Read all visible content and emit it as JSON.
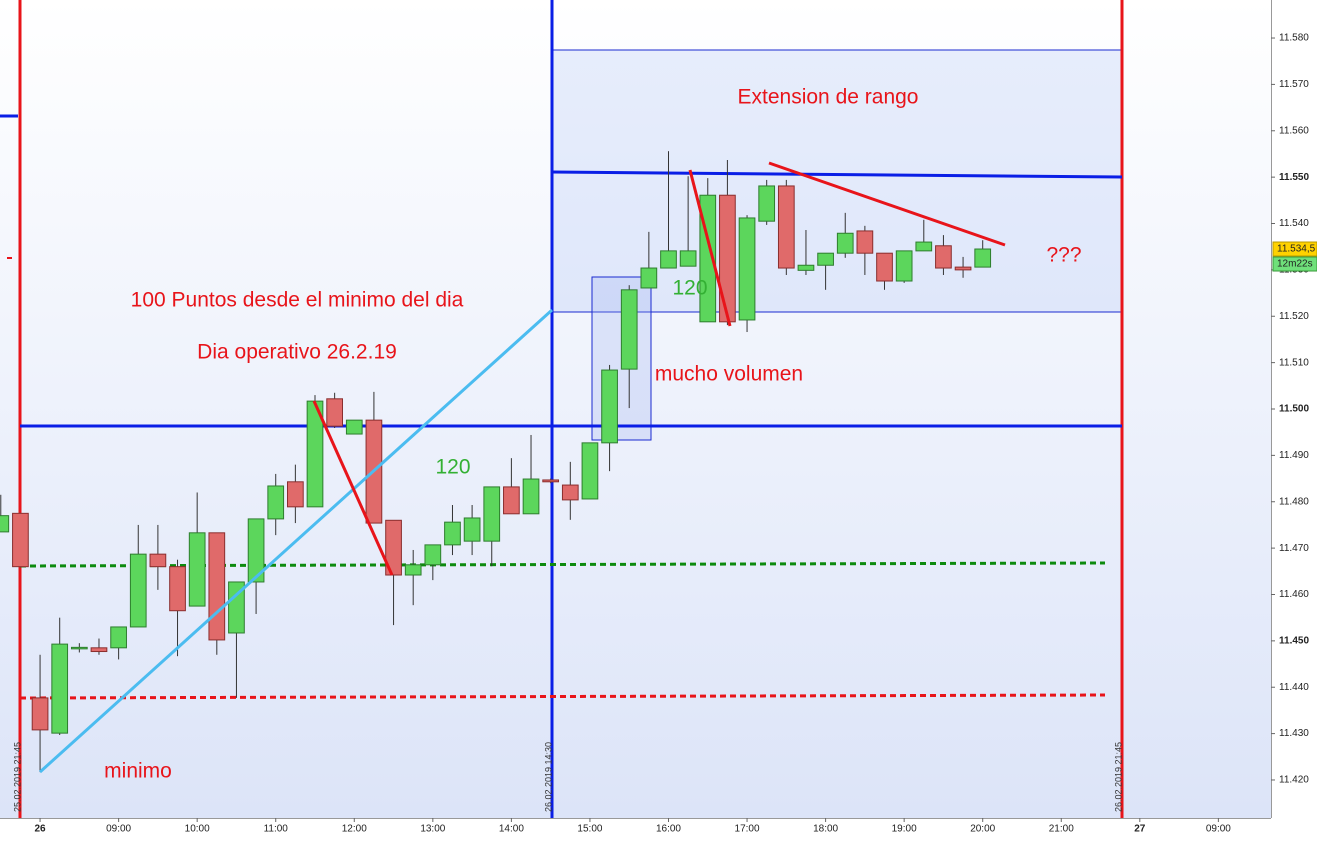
{
  "chart_data": {
    "type": "candlestick",
    "up_color": "#5cd65c",
    "down_color": "#e06a6a",
    "x": [
      7.5,
      7.75,
      8,
      8.25,
      8.5,
      8.75,
      9,
      9.25,
      9.5,
      9.75,
      10,
      10.25,
      10.5,
      10.75,
      11,
      11.25,
      11.5,
      11.75,
      12,
      12.25,
      12.5,
      12.75,
      13,
      13.25,
      13.5,
      13.75,
      14,
      14.25,
      14.5,
      14.75,
      15,
      15.25,
      15.5,
      15.75,
      16,
      16.25,
      16.5,
      16.75,
      17,
      17.25,
      17.5,
      17.75,
      18,
      18.25,
      18.5,
      18.75,
      19,
      19.25,
      19.5,
      19.75,
      20
    ],
    "open": [
      11.4735,
      11.4775,
      11.4377,
      11.4301,
      11.4483,
      11.4485,
      11.4485,
      11.453,
      11.4687,
      11.466,
      11.4575,
      11.4733,
      11.4517,
      11.4627,
      11.4763,
      11.4843,
      11.4789,
      11.5022,
      11.4946,
      11.4976,
      11.476,
      11.4642,
      11.4664,
      11.4707,
      11.4715,
      11.4715,
      11.4832,
      11.4774,
      11.4847,
      11.4836,
      11.4806,
      11.4927,
      11.5086,
      11.5261,
      11.5304,
      11.5308,
      11.5188,
      11.5461,
      11.5192,
      11.5405,
      11.5481,
      11.5299,
      11.531,
      11.5336,
      11.5384,
      11.5336,
      11.5276,
      11.5341,
      11.5352,
      11.5306,
      11.5306
    ],
    "high": [
      11.4815,
      11.4775,
      11.447,
      11.455,
      11.4495,
      11.4505,
      11.453,
      11.475,
      11.475,
      11.4675,
      11.482,
      11.4733,
      11.4627,
      11.4763,
      11.486,
      11.488,
      11.503,
      11.5035,
      11.4976,
      11.5037,
      11.476,
      11.4696,
      11.4707,
      11.4793,
      11.4793,
      11.4832,
      11.4894,
      11.4944,
      11.485,
      11.4886,
      11.4927,
      11.5095,
      11.5267,
      11.5382,
      11.5556,
      11.5502,
      11.5498,
      11.5537,
      11.5418,
      11.5494,
      11.5494,
      11.5386,
      11.5336,
      11.5423,
      11.5395,
      11.5336,
      11.5341,
      11.5408,
      11.5375,
      11.5328,
      11.5364
    ],
    "low": [
      11.4735,
      11.466,
      11.4217,
      11.4297,
      11.4475,
      11.447,
      11.446,
      11.453,
      11.461,
      11.4467,
      11.4575,
      11.447,
      11.4377,
      11.4558,
      11.4728,
      11.4754,
      11.4789,
      11.4959,
      11.4946,
      11.4754,
      11.4534,
      11.4577,
      11.4631,
      11.4685,
      11.4685,
      11.4661,
      11.4774,
      11.4774,
      11.484,
      11.4761,
      11.4806,
      11.4866,
      11.5002,
      11.5261,
      11.5304,
      11.5308,
      11.5188,
      11.5181,
      11.5166,
      11.5397,
      11.5289,
      11.5289,
      11.5257,
      11.5326,
      11.5289,
      11.5257,
      11.5272,
      11.5341,
      11.5289,
      11.5283,
      11.5306
    ],
    "close": [
      11.477,
      11.466,
      11.4308,
      11.4493,
      11.4486,
      11.4477,
      11.453,
      11.4687,
      11.466,
      11.4565,
      11.4733,
      11.4502,
      11.4627,
      11.4763,
      11.4834,
      11.4789,
      11.5017,
      11.4963,
      11.4976,
      11.4754,
      11.4642,
      11.4664,
      11.4707,
      11.4756,
      11.4765,
      11.4832,
      11.4774,
      11.4849,
      11.4843,
      11.4804,
      11.4927,
      11.5084,
      11.5257,
      11.5304,
      11.5341,
      11.5341,
      11.5461,
      11.5188,
      11.5412,
      11.5481,
      11.5304,
      11.531,
      11.5336,
      11.5379,
      11.5336,
      11.5276,
      11.5341,
      11.536,
      11.5304,
      11.53,
      11.5345
    ],
    "xlim": [
      7.49,
      23.67
    ],
    "ylim": [
      11.4118,
      11.5882
    ],
    "xticks": [
      {
        "value": 8,
        "label": "26",
        "bold": true
      },
      {
        "value": 9,
        "label": "09:00"
      },
      {
        "value": 10,
        "label": "10:00"
      },
      {
        "value": 11,
        "label": "11:00"
      },
      {
        "value": 12,
        "label": "12:00"
      },
      {
        "value": 13,
        "label": "13:00"
      },
      {
        "value": 14,
        "label": "14:00"
      },
      {
        "value": 15,
        "label": "15:00"
      },
      {
        "value": 16,
        "label": "16:00"
      },
      {
        "value": 17,
        "label": "17:00"
      },
      {
        "value": 18,
        "label": "18:00"
      },
      {
        "value": 19,
        "label": "19:00"
      },
      {
        "value": 20,
        "label": "20:00"
      },
      {
        "value": 21,
        "label": "21:00"
      },
      {
        "value": 22,
        "label": "27",
        "bold": true
      },
      {
        "value": 23,
        "label": "09:00"
      }
    ],
    "yticks": [
      {
        "value": 11.42,
        "label": "11.420"
      },
      {
        "value": 11.43,
        "label": "11.430"
      },
      {
        "value": 11.44,
        "label": "11.440"
      },
      {
        "value": 11.45,
        "label": "11.450",
        "bold": true
      },
      {
        "value": 11.46,
        "label": "11.460"
      },
      {
        "value": 11.47,
        "label": "11.470"
      },
      {
        "value": 11.48,
        "label": "11.480"
      },
      {
        "value": 11.49,
        "label": "11.490"
      },
      {
        "value": 11.5,
        "label": "11.500",
        "bold": true
      },
      {
        "value": 11.51,
        "label": "11.510"
      },
      {
        "value": 11.52,
        "label": "11.520"
      },
      {
        "value": 11.53,
        "label": "11.530"
      },
      {
        "value": 11.54,
        "label": "11.540"
      },
      {
        "value": 11.55,
        "label": "11.550",
        "bold": true
      },
      {
        "value": 11.56,
        "label": "11.560"
      },
      {
        "value": 11.57,
        "label": "11.570"
      },
      {
        "value": 11.58,
        "label": "11.580"
      }
    ],
    "last_price": {
      "value": 11.5345,
      "label": "11.534,5"
    },
    "timer_label": "12m22s",
    "annotations": [
      "Extension de rango",
      "100 Puntos desde el minimo del dia",
      "Dia operativo 26.2.19",
      "120",
      "120",
      "mucho volumen",
      "minimo",
      "???"
    ],
    "session_labels": [
      "25.02.2019 21:45",
      "26.02.2019 14:30",
      "26.02.2019 21:45"
    ]
  }
}
